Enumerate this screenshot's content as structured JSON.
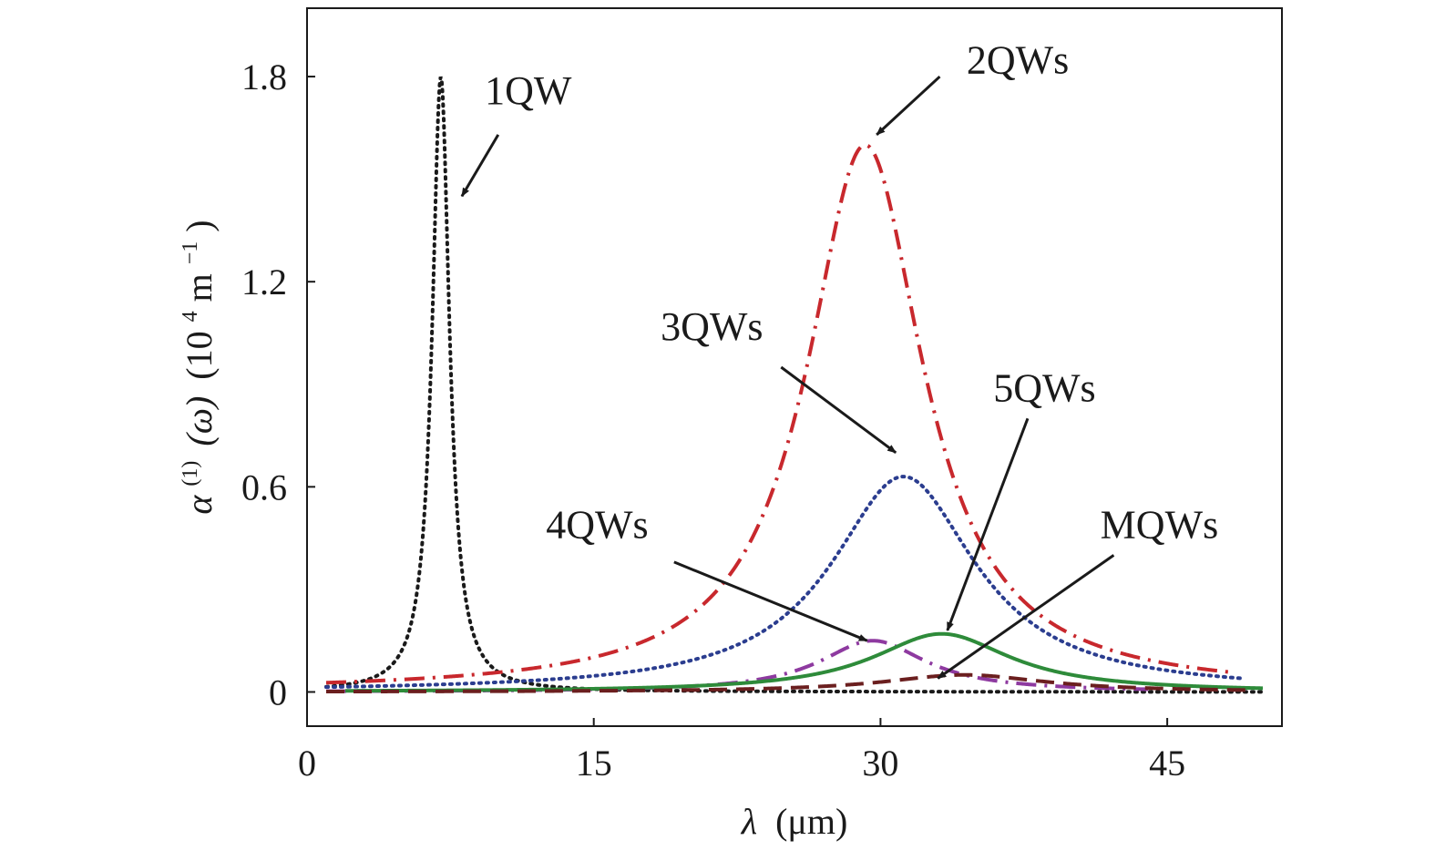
{
  "chart_data": {
    "type": "line",
    "title": "",
    "xlabel": {
      "symbol": "λ",
      "unit": "(μm)"
    },
    "ylabel": {
      "symbol": "α",
      "superscript": "(1)",
      "argument": "(ω)",
      "unit_prefix": "(10",
      "unit_exponent": "4",
      "unit_mid": " m",
      "unit_suffix_exponent": "−1",
      "unit_close": ")"
    },
    "xlim": [
      0,
      51
    ],
    "ylim": [
      -0.1,
      2.0
    ],
    "x_ticks": [
      0,
      15,
      30,
      45
    ],
    "x_tick_labels": [
      "0",
      "15",
      "30",
      "45"
    ],
    "y_ticks": [
      0,
      0.6,
      1.2,
      1.8
    ],
    "y_tick_labels": [
      "0",
      "0.6",
      "1.2",
      "1.8"
    ],
    "grid": false,
    "legend": "none",
    "series": [
      {
        "name": "1QW",
        "peak_x": 7.0,
        "peak_y": 1.8,
        "width": 0.55,
        "x_start": 1.0,
        "x_end": 50.0,
        "color": "#1a1a1a",
        "style": "dotted"
      },
      {
        "name": "2QWs",
        "peak_x": 29.2,
        "peak_y": 1.6,
        "width": 3.7,
        "x_start": 1.0,
        "x_end": 48.5,
        "color": "#c8282d",
        "style": "dash-dot"
      },
      {
        "name": "3QWs",
        "peak_x": 31.2,
        "peak_y": 0.63,
        "width": 4.6,
        "x_start": 1.0,
        "x_end": 49.0,
        "color": "#2b3d8f",
        "style": "dotted"
      },
      {
        "name": "4QWs",
        "peak_x": 29.6,
        "peak_y": 0.15,
        "width": 3.4,
        "x_start": 1.0,
        "x_end": 44.0,
        "color": "#8e3aa0",
        "style": "dash-dot"
      },
      {
        "name": "5QWs",
        "peak_x": 33.2,
        "peak_y": 0.17,
        "width": 4.4,
        "x_start": 2.0,
        "x_end": 50.0,
        "color": "#2e8b3a",
        "style": "solid"
      },
      {
        "name": "MQWs",
        "peak_x": 34.4,
        "peak_y": 0.05,
        "width": 5.2,
        "x_start": 1.0,
        "x_end": 49.5,
        "color": "#6b1f1f",
        "style": "dashed"
      }
    ],
    "annotations": [
      {
        "text": "1QW",
        "target": [
          8.1,
          1.45
        ],
        "from": [
          10.0,
          1.63
        ],
        "label_pos": [
          9.3,
          1.72
        ]
      },
      {
        "text": "2QWs",
        "target": [
          29.8,
          1.63
        ],
        "from": [
          33.1,
          1.8
        ],
        "label_pos": [
          34.5,
          1.81
        ]
      },
      {
        "text": "3QWs",
        "target": [
          30.8,
          0.7
        ],
        "from": [
          24.8,
          0.95
        ],
        "label_pos": [
          18.5,
          1.03
        ]
      },
      {
        "text": "4QWs",
        "target": [
          29.3,
          0.15
        ],
        "from": [
          19.2,
          0.38
        ],
        "label_pos": [
          12.5,
          0.45
        ]
      },
      {
        "text": "5QWs",
        "target": [
          33.5,
          0.18
        ],
        "from": [
          37.7,
          0.8
        ],
        "label_pos": [
          35.9,
          0.85
        ]
      },
      {
        "text": "MQWs",
        "target": [
          33.0,
          0.04
        ],
        "from": [
          42.2,
          0.4
        ],
        "label_pos": [
          41.5,
          0.45
        ]
      }
    ]
  }
}
